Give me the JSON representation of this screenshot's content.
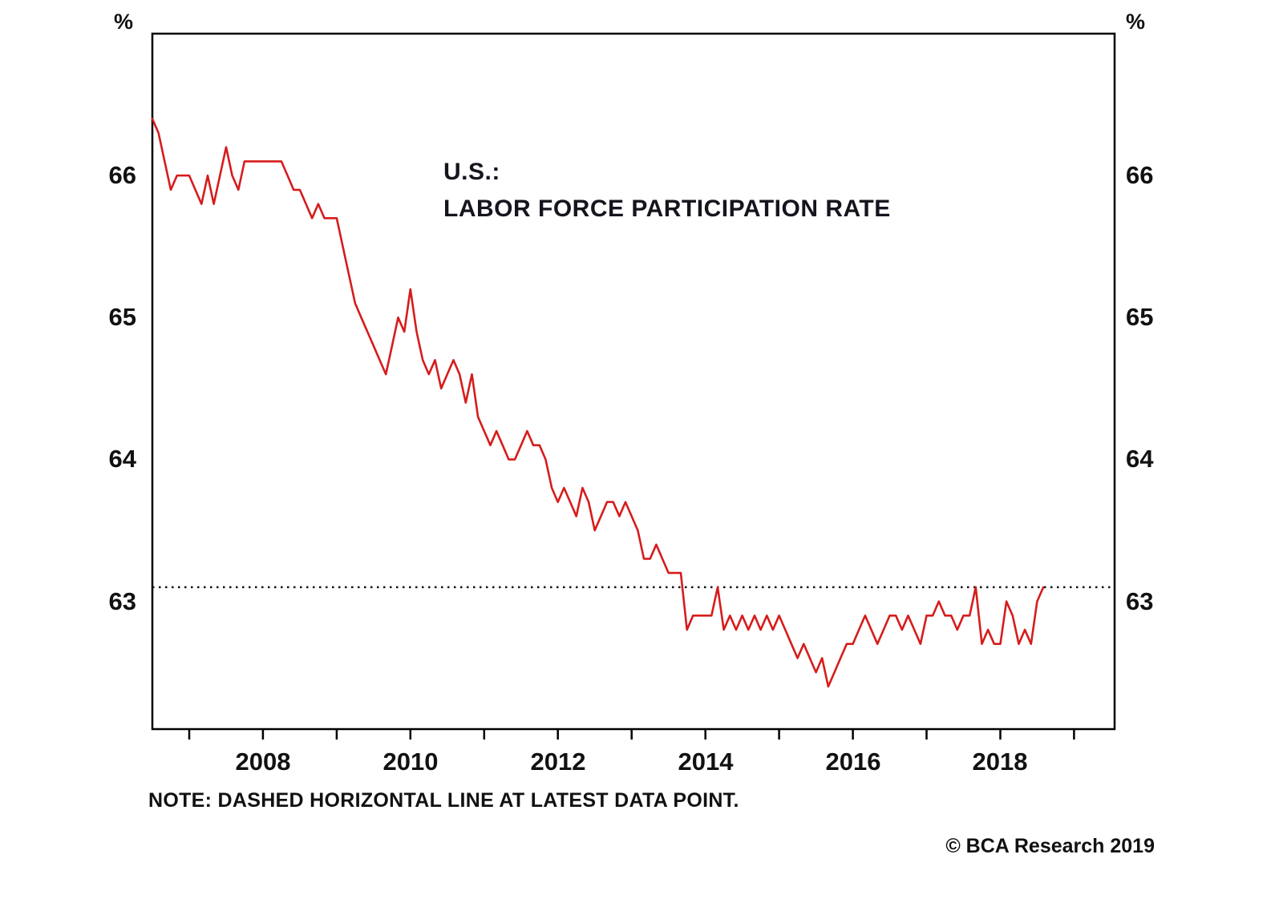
{
  "page": {
    "background": "#ffffff"
  },
  "footer": {
    "note": "NOTE: DASHED HORIZONTAL LINE AT LATEST DATA POINT.",
    "copyright": "© BCA Research 2019"
  },
  "chart_data": {
    "type": "line",
    "title_line1": "U.S.:",
    "title_line2": "LABOR FORCE PARTICIPATION RATE",
    "unit_label_left": "%",
    "unit_label_right": "%",
    "line_color": "#d61c1c",
    "axis_color": "#000000",
    "grid": false,
    "x_range": [
      2006.5,
      2019.55
    ],
    "y_range": [
      62.1,
      67.0
    ],
    "y_ticks": [
      63,
      64,
      65,
      66
    ],
    "x_ticks_minor_years": [
      2007,
      2008,
      2009,
      2010,
      2011,
      2012,
      2013,
      2014,
      2015,
      2016,
      2017,
      2018,
      2019
    ],
    "x_ticks_labeled": [
      2008,
      2010,
      2012,
      2014,
      2016,
      2018
    ],
    "dashed_line": {
      "value": 63.1,
      "meaning": "latest data point"
    },
    "series": [
      {
        "name": "U.S. Labor Force Participation Rate",
        "unit": "%",
        "frequency": "monthly",
        "start_year": 2006,
        "start_month": 7,
        "values": [
          66.4,
          66.3,
          66.1,
          65.9,
          66.0,
          66.0,
          66.0,
          65.9,
          65.8,
          66.0,
          65.8,
          66.0,
          66.2,
          66.0,
          65.9,
          66.1,
          66.1,
          66.1,
          66.1,
          66.1,
          66.1,
          66.1,
          66.0,
          65.9,
          65.9,
          65.8,
          65.7,
          65.8,
          65.7,
          65.7,
          65.7,
          65.5,
          65.3,
          65.1,
          65.0,
          64.9,
          64.8,
          64.7,
          64.6,
          64.8,
          65.0,
          64.9,
          65.2,
          64.9,
          64.7,
          64.6,
          64.7,
          64.5,
          64.6,
          64.7,
          64.6,
          64.4,
          64.6,
          64.3,
          64.2,
          64.1,
          64.2,
          64.1,
          64.0,
          64.0,
          64.1,
          64.2,
          64.1,
          64.1,
          64.0,
          63.8,
          63.7,
          63.8,
          63.7,
          63.6,
          63.8,
          63.7,
          63.5,
          63.6,
          63.7,
          63.7,
          63.6,
          63.7,
          63.6,
          63.5,
          63.3,
          63.3,
          63.4,
          63.3,
          63.2,
          63.2,
          63.2,
          62.8,
          62.9,
          62.9,
          62.9,
          62.9,
          63.1,
          62.8,
          62.9,
          62.8,
          62.9,
          62.8,
          62.9,
          62.8,
          62.9,
          62.8,
          62.9,
          62.8,
          62.7,
          62.6,
          62.7,
          62.6,
          62.5,
          62.6,
          62.4,
          62.5,
          62.6,
          62.7,
          62.7,
          62.8,
          62.9,
          62.8,
          62.7,
          62.8,
          62.9,
          62.9,
          62.8,
          62.9,
          62.8,
          62.7,
          62.9,
          62.9,
          63.0,
          62.9,
          62.9,
          62.8,
          62.9,
          62.9,
          63.1,
          62.7,
          62.8,
          62.7,
          62.7,
          63.0,
          62.9,
          62.7,
          62.8,
          62.7,
          63.0,
          63.1
        ]
      }
    ]
  }
}
